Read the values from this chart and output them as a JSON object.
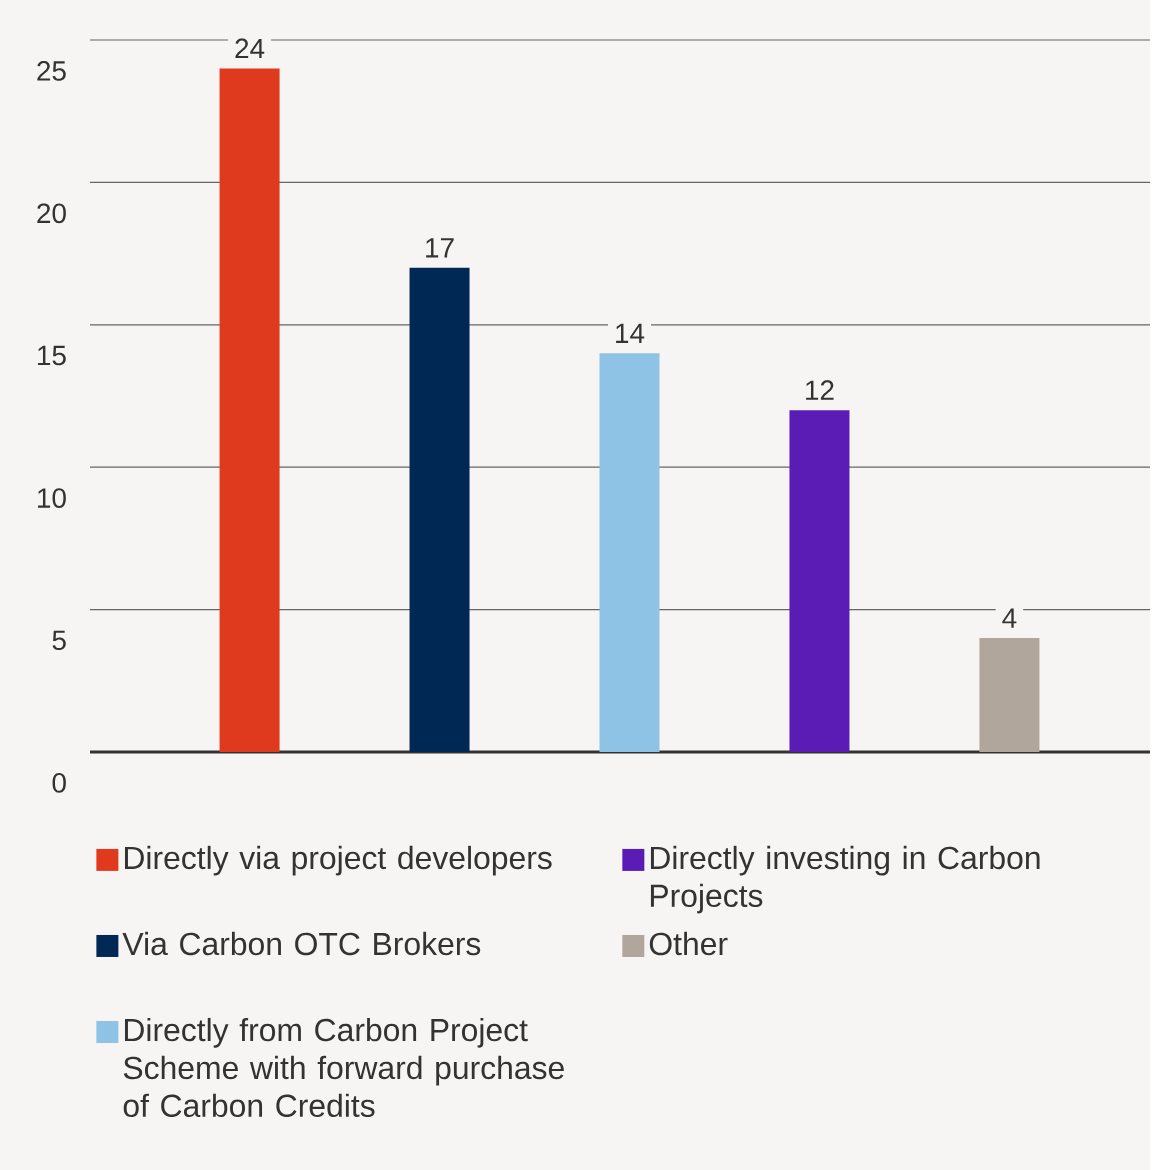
{
  "chart_data": {
    "type": "bar",
    "categories": [
      null,
      null,
      null,
      null,
      null
    ],
    "series": [
      {
        "name": "Directly via project developers",
        "color": "#e03a1e",
        "values": [
          24,
          null,
          null,
          null,
          null
        ]
      },
      {
        "name": "Via Carbon OTC Brokers",
        "color": "#002855",
        "values": [
          null,
          17,
          null,
          null,
          null
        ]
      },
      {
        "name": "Directly from Carbon Project Scheme with forward purchase of Carbon Credits",
        "color": "#8ec3e6",
        "values": [
          null,
          null,
          14,
          null,
          null
        ]
      },
      {
        "name": "Directly investing in Carbon Projects",
        "color": "#5b1bb5",
        "values": [
          null,
          null,
          null,
          12,
          null
        ]
      },
      {
        "name": "Other",
        "color": "#b0a69b",
        "values": [
          null,
          null,
          null,
          null,
          4
        ]
      }
    ],
    "ylim": [
      0,
      25
    ],
    "yticks": [
      0,
      5,
      10,
      15,
      20,
      25
    ],
    "grid": "y",
    "legend": "bottom",
    "data_labels": true
  }
}
